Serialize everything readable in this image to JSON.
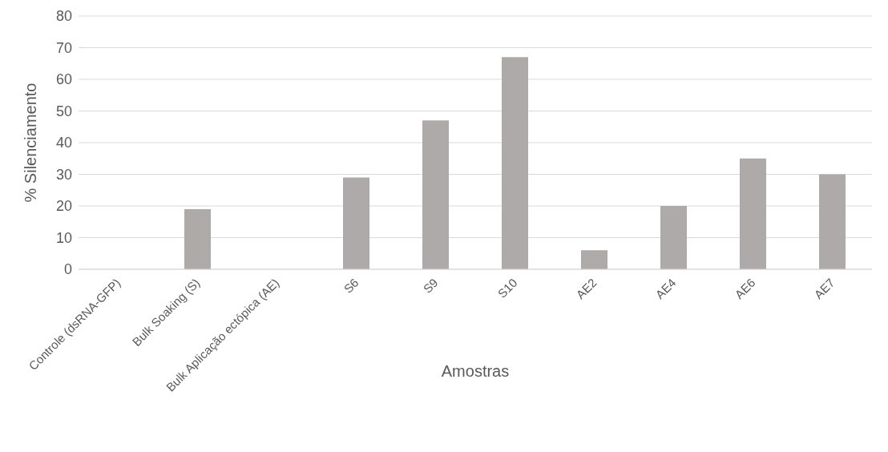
{
  "chart_data": {
    "type": "bar",
    "xlabel": "Amostras",
    "ylabel": "% Silenciamento",
    "categories": [
      "Controle (dsRNA-GFP)",
      "Bulk Soaking (S)",
      "Bulk Aplicação ectópica (AE)",
      "S6",
      "S9",
      "S10",
      "AE2",
      "AE4",
      "AE6",
      "AE7"
    ],
    "values": [
      0,
      19,
      0,
      29,
      47,
      67,
      6,
      20,
      35,
      30
    ],
    "color": "#aeaaaa",
    "ylim": [
      0,
      80
    ],
    "yticks": [
      0,
      10,
      20,
      30,
      40,
      50,
      60,
      70,
      80
    ],
    "grid": "y"
  }
}
